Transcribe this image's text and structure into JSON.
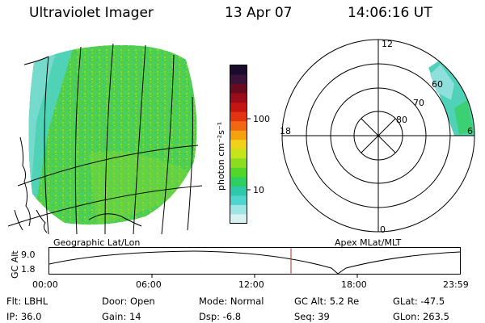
{
  "header": {
    "instrument": "Ultraviolet Imager",
    "date": "13 Apr 07",
    "time": "14:06:16 UT"
  },
  "left_image": {
    "caption": "Geographic Lat/Lon"
  },
  "colorbar": {
    "unit_label": "photon cm⁻²s⁻¹",
    "ticks": [
      "100",
      "10"
    ],
    "scale": "log",
    "colors": [
      "#1a0a2e",
      "#3b1238",
      "#6a0a1e",
      "#9a0c18",
      "#c41414",
      "#e23312",
      "#f06812",
      "#f4a210",
      "#f0d21a",
      "#c6e41c",
      "#8cdc22",
      "#52d62a",
      "#2ecf60",
      "#2ec9a8",
      "#4fd4d0",
      "#9ee6e6",
      "#d8f2f2"
    ]
  },
  "polar_plot": {
    "caption": "Apex MLat/MLT",
    "mlt_labels": {
      "top": "12",
      "left": "18",
      "right": "6",
      "bottom": "0"
    },
    "lat_labels": [
      "60",
      "70",
      "80"
    ]
  },
  "altitude_plot": {
    "ylabel": "GC Alt",
    "y_ticks": [
      "9.0",
      "1.8"
    ],
    "x_ticks": [
      "00:00",
      "06:00",
      "12:00",
      "18:00",
      "23:59"
    ],
    "current_time_marker": "14:06"
  },
  "info": {
    "flt": "Flt: LBHL",
    "ip": "IP: 36.0",
    "door": "Door: Open",
    "gain": "Gain: 14",
    "mode": "Mode: Normal",
    "dsp": "Dsp:    -6.8",
    "gc_alt": "GC Alt: 5.2 Re",
    "seq": "Seq: 39",
    "glat": "GLat: -47.5",
    "glon": "GLon: 263.5"
  }
}
